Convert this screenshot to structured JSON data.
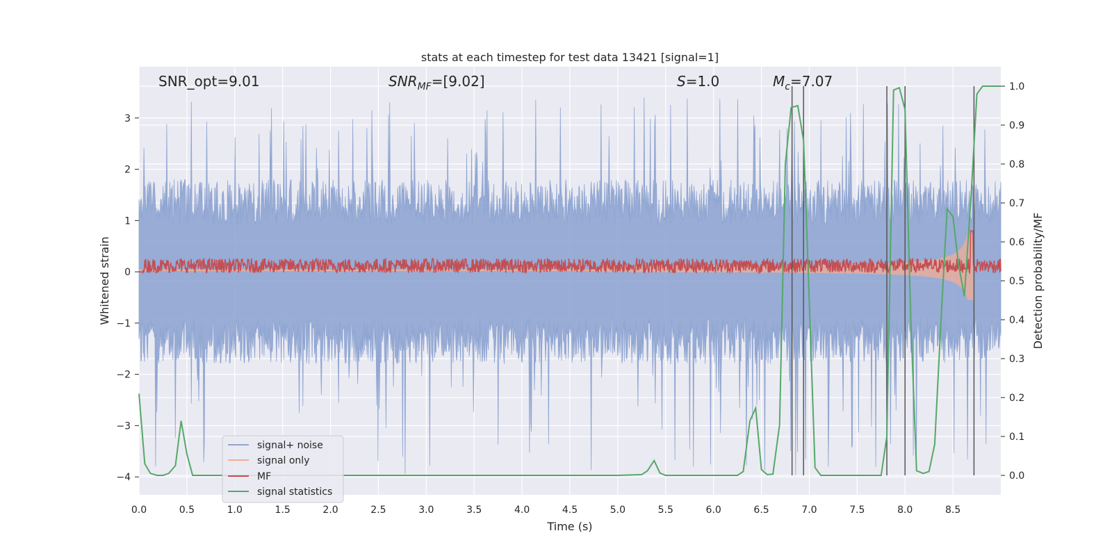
{
  "chart_data": {
    "type": "line",
    "title": "stats at each timestep for test data 13421 [signal=1]",
    "xlabel": "Time (s)",
    "ylabel": "Whitened strain",
    "ylabel_right": "Detection probability/MF",
    "xlim": [
      0.0,
      9.0
    ],
    "ylim": [
      -4.35,
      4.0
    ],
    "ylim_right": [
      -0.05,
      1.05
    ],
    "x_ticks": [
      "0.0",
      "0.5",
      "1.0",
      "1.5",
      "2.0",
      "2.5",
      "3.0",
      "3.5",
      "4.0",
      "4.5",
      "5.0",
      "5.5",
      "6.0",
      "6.5",
      "7.0",
      "7.5",
      "8.0",
      "8.5"
    ],
    "y_ticks": [
      "3",
      "2",
      "1",
      "0",
      "−1",
      "−2",
      "−3",
      "−4"
    ],
    "y_ticks_right": [
      "1.0",
      "0.9",
      "0.8",
      "0.7",
      "0.6",
      "0.5",
      "0.4",
      "0.3",
      "0.2",
      "0.1",
      "0.0"
    ],
    "annotations": {
      "snr_opt": "SNR_opt=9.01",
      "snr_mf_main": "SNR",
      "snr_mf_sub": "MF",
      "snr_mf_suffix": "=[9.02]",
      "s_main": "S",
      "s_suffix": "=1.0",
      "mc_main": "M",
      "mc_sub": "c",
      "mc_suffix": "=7.07"
    },
    "legend": [
      {
        "label": "signal+ noise",
        "color": "#8fa5d1"
      },
      {
        "label": "signal only",
        "color": "#f1ae94"
      },
      {
        "label": "MF",
        "color": "#c44e52"
      },
      {
        "label": "signal statistics",
        "color": "#55a868"
      }
    ],
    "series": [
      {
        "name": "signal+ noise",
        "description": "noise band",
        "amplitude_typical": 1.5,
        "peak_max": 3.4,
        "trough_min": -4.0
      },
      {
        "name": "signal only",
        "description": "chirp growing toward merger",
        "t_merge": 8.72,
        "amp_start": 0.05,
        "amp_peak": 1.0
      },
      {
        "name": "MF",
        "description": "matched filter output",
        "baseline": 0.12,
        "spike_t": 8.7,
        "spike_value": 0.8
      },
      {
        "name": "signal statistics",
        "axis": "right",
        "x": [
          0.0,
          0.06,
          0.12,
          0.19,
          0.25,
          0.31,
          0.38,
          0.44,
          0.5,
          0.56,
          0.62,
          0.7,
          1.0,
          2.0,
          3.0,
          4.0,
          5.0,
          5.25,
          5.31,
          5.38,
          5.44,
          5.5,
          5.6,
          6.0,
          6.25,
          6.31,
          6.38,
          6.44,
          6.5,
          6.56,
          6.62,
          6.69,
          6.75,
          6.81,
          6.88,
          6.94,
          7.0,
          7.06,
          7.12,
          7.19,
          7.25,
          7.5,
          7.75,
          7.81,
          7.88,
          7.94,
          8.0,
          8.06,
          8.12,
          8.19,
          8.25,
          8.31,
          8.38,
          8.44,
          8.5,
          8.56,
          8.62,
          8.69,
          8.75,
          8.81,
          8.88,
          8.94,
          9.0
        ],
        "y": [
          0.21,
          0.03,
          0.005,
          0.0,
          0.0,
          0.005,
          0.025,
          0.14,
          0.055,
          0.0,
          0.0,
          0.0,
          0.0,
          0.0,
          0.0,
          0.0,
          0.0,
          0.002,
          0.012,
          0.038,
          0.006,
          0.0,
          0.0,
          0.0,
          0.0,
          0.01,
          0.14,
          0.173,
          0.015,
          0.002,
          0.003,
          0.13,
          0.8,
          0.945,
          0.95,
          0.86,
          0.45,
          0.02,
          0.0,
          0.0,
          0.0,
          0.0,
          0.0,
          0.1,
          0.99,
          0.996,
          0.94,
          0.4,
          0.012,
          0.005,
          0.01,
          0.08,
          0.42,
          0.685,
          0.665,
          0.54,
          0.46,
          0.72,
          0.98,
          1.0,
          1.0,
          1.0,
          1.0
        ]
      }
    ],
    "vertical_lines_t": [
      6.82,
      6.94,
      7.81,
      8.0,
      8.72
    ]
  }
}
